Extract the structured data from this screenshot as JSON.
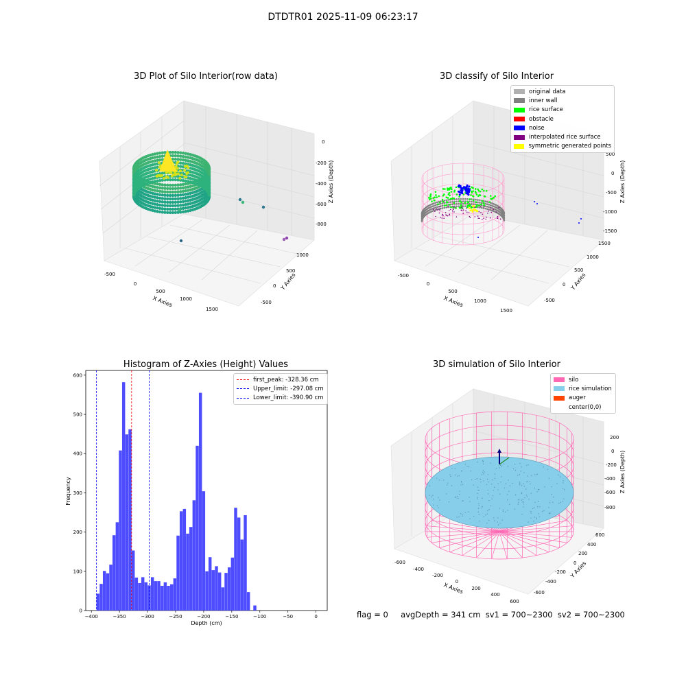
{
  "suptitle": "DTDTR01 2025-11-09 06:23:17",
  "panels": {
    "raw": {
      "title": "3D Plot of Silo Interior(row data)",
      "xlabel": "X Axies",
      "ylabel": "Y Axies",
      "zlabel": "Z Axies (Depth)",
      "xticks": [
        "-500",
        "0",
        "500",
        "1000",
        "1500"
      ],
      "yticks": [
        "-500",
        "0",
        "500",
        "1000"
      ],
      "zticks": [
        "0",
        "-200",
        "-400",
        "-600",
        "-800"
      ]
    },
    "classify": {
      "title": "3D classify of Silo Interior",
      "xlabel": "X Axies",
      "ylabel": "Y Axies",
      "zlabel": "Z Axies (Depth)",
      "xticks": [
        "-500",
        "0",
        "500",
        "1000",
        "1500"
      ],
      "yticks": [
        "-500",
        "0",
        "500",
        "1000",
        "1500"
      ],
      "zticks": [
        "500",
        "0",
        "-500",
        "-1000",
        "-1500"
      ],
      "legend": [
        {
          "label": "original data",
          "color": "#b0b0b0"
        },
        {
          "label": "inner wall",
          "color": "#808080"
        },
        {
          "label": "rice surface",
          "color": "#00ff00"
        },
        {
          "label": "obstacle",
          "color": "#ff0000"
        },
        {
          "label": "noise",
          "color": "#0000ff"
        },
        {
          "label": "interpolated rice surface",
          "color": "#800080"
        },
        {
          "label": "symmetric generated points",
          "color": "#ffff00"
        }
      ]
    },
    "histogram": {
      "title": "Histogram of Z-Axies (Height) Values",
      "xlabel": "Depth (cm)",
      "ylabel": "Frequency",
      "xticks": [
        "-400",
        "-350",
        "-300",
        "-250",
        "-200",
        "-150",
        "-100",
        "-50",
        "0"
      ],
      "yticks": [
        "0",
        "100",
        "200",
        "300",
        "400",
        "500",
        "600"
      ],
      "legend": [
        {
          "label": "first_peak: -328.36 cm",
          "color": "#ff0000"
        },
        {
          "label": "Upper_limit: -297.08 cm",
          "color": "#0000ff"
        },
        {
          "label": "Lower_limit: -390.90 cm",
          "color": "#0000ff"
        }
      ]
    },
    "simulation": {
      "title": "3D simulation of Silo Interior",
      "xlabel": "X Axies",
      "ylabel": "Y Axies",
      "zlabel": "Z Axies (Depth)",
      "xticks": [
        "-600",
        "-400",
        "-200",
        "0",
        "200",
        "400",
        "600"
      ],
      "yticks": [
        "-600",
        "-400",
        "-200",
        "0",
        "200",
        "400",
        "600"
      ],
      "zticks": [
        "200",
        "0",
        "-200",
        "-400",
        "-600",
        "-800"
      ],
      "legend": [
        {
          "label": "silo",
          "color": "#ff69b4"
        },
        {
          "label": "rice simulation",
          "color": "#87ceeb"
        },
        {
          "label": "auger",
          "color": "#ff4500"
        },
        {
          "label": "center(0,0)",
          "color": "#ffffff"
        }
      ]
    }
  },
  "footer": {
    "flag": "flag = 0",
    "stats": "avgDepth = 341 cm  sv1 = 700~2300  sv2 = 700~2300"
  },
  "chart_data": [
    {
      "type": "bar",
      "title": "Histogram of Z-Axies (Height) Values",
      "xlabel": "Depth (cm)",
      "ylabel": "Frequency",
      "bin_width": 5.7,
      "xlim": [
        -410,
        20
      ],
      "ylim": [
        0,
        612
      ],
      "bins": [
        {
          "x": -390.9,
          "y": 43
        },
        {
          "x": -385.2,
          "y": 68
        },
        {
          "x": -379.5,
          "y": 101
        },
        {
          "x": -373.8,
          "y": 95
        },
        {
          "x": -368.1,
          "y": 117
        },
        {
          "x": -362.4,
          "y": 192
        },
        {
          "x": -356.7,
          "y": 225
        },
        {
          "x": -351.0,
          "y": 408
        },
        {
          "x": -345.3,
          "y": 582
        },
        {
          "x": -339.6,
          "y": 449
        },
        {
          "x": -333.9,
          "y": 462
        },
        {
          "x": -328.2,
          "y": 153
        },
        {
          "x": -322.5,
          "y": 84
        },
        {
          "x": -316.8,
          "y": 70
        },
        {
          "x": -311.1,
          "y": 85
        },
        {
          "x": -305.4,
          "y": 72
        },
        {
          "x": -299.7,
          "y": 64
        },
        {
          "x": -294.0,
          "y": 85
        },
        {
          "x": -288.3,
          "y": 75
        },
        {
          "x": -282.6,
          "y": 75
        },
        {
          "x": -276.9,
          "y": 63
        },
        {
          "x": -271.2,
          "y": 72
        },
        {
          "x": -265.5,
          "y": 63
        },
        {
          "x": -259.8,
          "y": 67
        },
        {
          "x": -254.1,
          "y": 82
        },
        {
          "x": -248.4,
          "y": 191
        },
        {
          "x": -242.7,
          "y": 253
        },
        {
          "x": -237.0,
          "y": 259
        },
        {
          "x": -231.3,
          "y": 196
        },
        {
          "x": -225.6,
          "y": 213
        },
        {
          "x": -219.9,
          "y": 281
        },
        {
          "x": -214.2,
          "y": 420
        },
        {
          "x": -208.5,
          "y": 555
        },
        {
          "x": -202.8,
          "y": 304
        },
        {
          "x": -197.1,
          "y": 100
        },
        {
          "x": -191.4,
          "y": 136
        },
        {
          "x": -185.7,
          "y": 103
        },
        {
          "x": -180.0,
          "y": 113
        },
        {
          "x": -174.3,
          "y": 97
        },
        {
          "x": -168.6,
          "y": 59
        },
        {
          "x": -162.9,
          "y": 96
        },
        {
          "x": -157.2,
          "y": 110
        },
        {
          "x": -151.5,
          "y": 135
        },
        {
          "x": -145.8,
          "y": 262
        },
        {
          "x": -140.1,
          "y": 237
        },
        {
          "x": -134.4,
          "y": 181
        },
        {
          "x": -128.7,
          "y": 243
        },
        {
          "x": -123.0,
          "y": 47
        },
        {
          "x": -117.3,
          "y": 0
        },
        {
          "x": -111.6,
          "y": 13
        }
      ],
      "vlines": [
        {
          "label": "first_peak: -328.36 cm",
          "x": -328.36,
          "color": "#ff0000"
        },
        {
          "label": "Upper_limit: -297.08 cm",
          "x": -297.08,
          "color": "#0000ff"
        },
        {
          "label": "Lower_limit: -390.90 cm",
          "x": -390.9,
          "color": "#0000ff"
        }
      ],
      "bar_color": "#4d4dff"
    }
  ]
}
